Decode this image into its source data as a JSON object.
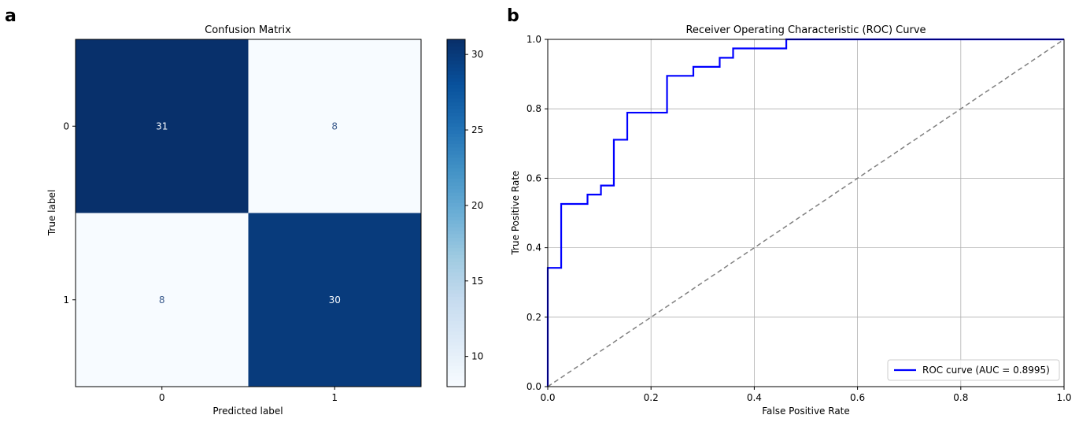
{
  "panels": {
    "a_label": "a",
    "b_label": "b"
  },
  "chart_data": [
    {
      "type": "heatmap",
      "title": "Confusion Matrix",
      "xlabel": "Predicted label",
      "ylabel": "True label",
      "x_categories": [
        "0",
        "1"
      ],
      "y_categories": [
        "0",
        "1"
      ],
      "values": [
        [
          31,
          8
        ],
        [
          8,
          30
        ]
      ],
      "colormap": "Blues",
      "colorbar": {
        "range": [
          8,
          31
        ],
        "ticks": [
          10,
          15,
          20,
          25,
          30
        ],
        "tick_labels": [
          "10",
          "15",
          "20",
          "25",
          "30"
        ]
      },
      "colors": {
        "high": "#08306b",
        "low": "#f7fbff",
        "text_on_dark": "#f7fbff",
        "text_on_light": "#3a5a8c"
      }
    },
    {
      "type": "line",
      "title": "Receiver Operating Characteristic (ROC) Curve",
      "xlabel": "False Positive Rate",
      "ylabel": "True Positive Rate",
      "xlim": [
        0.0,
        1.0
      ],
      "ylim": [
        0.0,
        1.0
      ],
      "x_ticks": [
        0.0,
        0.2,
        0.4,
        0.6,
        0.8,
        1.0
      ],
      "x_tick_labels": [
        "0.0",
        "0.2",
        "0.4",
        "0.6",
        "0.8",
        "1.0"
      ],
      "y_ticks": [
        0.0,
        0.2,
        0.4,
        0.6,
        0.8,
        1.0
      ],
      "y_tick_labels": [
        "0.0",
        "0.2",
        "0.4",
        "0.6",
        "0.8",
        "1.0"
      ],
      "grid": true,
      "legend_position": "lower-right",
      "series": [
        {
          "name": "ROC curve (AUC = 0.8995)",
          "color": "#0000ff",
          "style": "solid",
          "x": [
            0.0,
            0.0,
            0.026,
            0.026,
            0.077,
            0.077,
            0.103,
            0.103,
            0.128,
            0.128,
            0.154,
            0.154,
            0.231,
            0.231,
            0.282,
            0.282,
            0.333,
            0.333,
            0.359,
            0.359,
            0.462,
            0.462,
            1.0
          ],
          "y": [
            0.0,
            0.342,
            0.342,
            0.526,
            0.526,
            0.553,
            0.553,
            0.579,
            0.579,
            0.711,
            0.711,
            0.789,
            0.789,
            0.895,
            0.895,
            0.921,
            0.921,
            0.947,
            0.947,
            0.974,
            0.974,
            1.0,
            1.0
          ]
        },
        {
          "color": "#808080",
          "style": "dashed",
          "x": [
            0.0,
            1.0
          ],
          "y": [
            0.0,
            1.0
          ]
        }
      ]
    }
  ]
}
